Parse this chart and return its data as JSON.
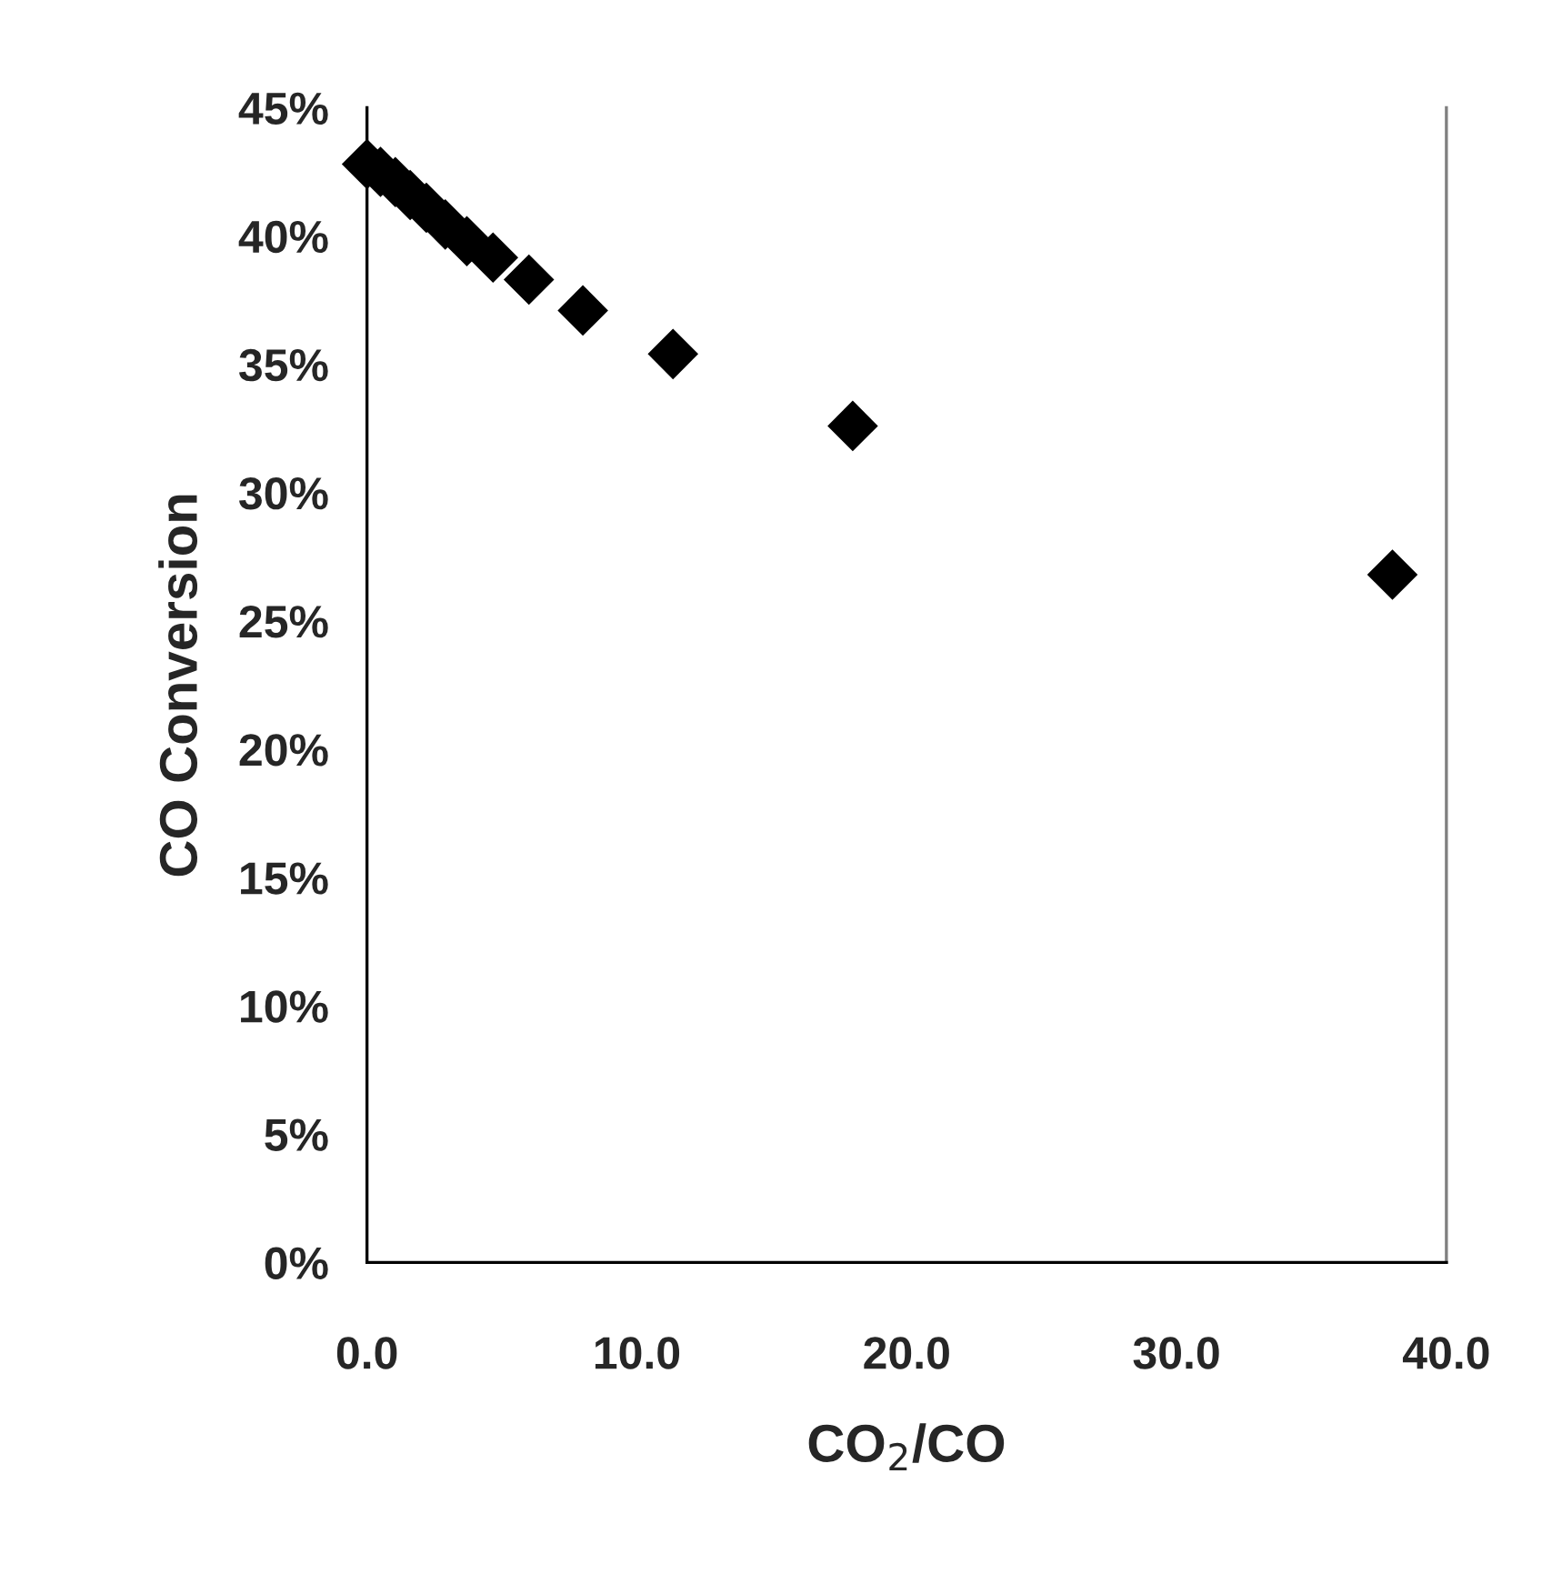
{
  "chart_data": {
    "type": "scatter",
    "xlabel": "CO$_{2}$/CO",
    "ylabel": "CO Conversion",
    "x": [
      0,
      0.5,
      1.05,
      1.6,
      2.2,
      2.9,
      3.7,
      4.67,
      6.0,
      8.0,
      11.34,
      18.0,
      38.0
    ],
    "series": [
      {
        "color": "#000000",
        "values": [
          42.8,
          42.5,
          42.1,
          41.6,
          41.1,
          40.45,
          39.8,
          39.16,
          38.3,
          37.1,
          35.4,
          32.6,
          26.8
        ]
      }
    ],
    "marker": "diamond",
    "grid": false,
    "legend": false,
    "xlim": [
      0,
      40
    ],
    "xticks": [
      {
        "value": 0,
        "label": "0.0"
      },
      {
        "value": 10,
        "label": "10.0"
      },
      {
        "value": 20,
        "label": "20.0"
      },
      {
        "value": 30,
        "label": "30.0"
      },
      {
        "value": 40,
        "label": "40.0"
      }
    ],
    "ylim": [
      0,
      45
    ],
    "yticks": [
      {
        "value": 0,
        "label": "0%"
      },
      {
        "value": 5,
        "label": "5%"
      },
      {
        "value": 10,
        "label": "10%"
      },
      {
        "value": 15,
        "label": "15%"
      },
      {
        "value": 20,
        "label": "20%"
      },
      {
        "value": 25,
        "label": "25%"
      },
      {
        "value": 30,
        "label": "30%"
      },
      {
        "value": 35,
        "label": "35%"
      },
      {
        "value": 40,
        "label": "40%"
      },
      {
        "value": 45,
        "label": "45%"
      }
    ]
  }
}
